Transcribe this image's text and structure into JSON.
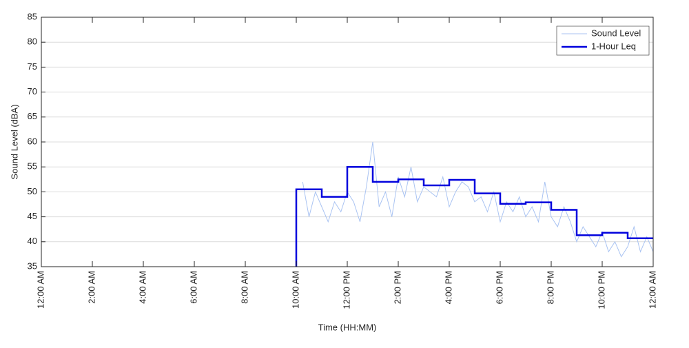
{
  "chart_data": {
    "type": "line",
    "xlabel": "Time (HH:MM)",
    "ylabel": "Sound Level (dBA)",
    "xlim": [
      0,
      24
    ],
    "ylim": [
      35,
      85
    ],
    "xticks": [
      {
        "value": 0,
        "label": "12:00 AM"
      },
      {
        "value": 2,
        "label": "2:00 AM"
      },
      {
        "value": 4,
        "label": "4:00 AM"
      },
      {
        "value": 6,
        "label": "6:00 AM"
      },
      {
        "value": 8,
        "label": "8:00 AM"
      },
      {
        "value": 10,
        "label": "10:00 AM"
      },
      {
        "value": 12,
        "label": "12:00 PM"
      },
      {
        "value": 14,
        "label": "2:00 PM"
      },
      {
        "value": 16,
        "label": "4:00 PM"
      },
      {
        "value": 18,
        "label": "6:00 PM"
      },
      {
        "value": 20,
        "label": "8:00 PM"
      },
      {
        "value": 22,
        "label": "10:00 PM"
      },
      {
        "value": 24,
        "label": "12:00 AM"
      }
    ],
    "yticks": [
      35,
      40,
      45,
      50,
      55,
      60,
      65,
      70,
      75,
      80,
      85
    ],
    "grid": true,
    "legend": "upper right",
    "series": [
      {
        "name": "Sound Level",
        "color": "#a9c3f2",
        "x": [
          10.25,
          10.5,
          10.75,
          11,
          11.25,
          11.5,
          11.75,
          12,
          12.25,
          12.5,
          12.75,
          13,
          13.25,
          13.5,
          13.75,
          14,
          14.25,
          14.5,
          14.75,
          15,
          15.25,
          15.5,
          15.75,
          16,
          16.25,
          16.5,
          16.75,
          17,
          17.25,
          17.5,
          17.75,
          18,
          18.25,
          18.5,
          18.75,
          19,
          19.25,
          19.5,
          19.75,
          20,
          20.25,
          20.5,
          20.75,
          21,
          21.25,
          21.5,
          21.75,
          22,
          22.25,
          22.5,
          22.75,
          23,
          23.25,
          23.5,
          23.75,
          24
        ],
        "values": [
          52,
          45,
          50,
          47,
          44,
          48,
          46,
          50,
          48,
          44,
          51,
          60,
          47,
          50,
          45,
          53,
          49,
          55,
          48,
          51,
          50,
          49,
          53,
          47,
          50,
          52,
          51,
          48,
          49,
          46,
          50,
          44,
          48,
          46,
          49,
          45,
          47,
          44,
          52,
          45,
          43,
          47,
          44,
          40,
          43,
          41,
          39,
          42,
          38,
          40,
          37,
          39,
          43,
          38,
          41,
          38
        ]
      },
      {
        "name": "1-Hour Leq",
        "color": "#0000dd",
        "step": true,
        "x": [
          10,
          11,
          12,
          13,
          14,
          15,
          16,
          17,
          18,
          19,
          20,
          21,
          22,
          23
        ],
        "values": [
          50.5,
          49,
          55,
          52,
          52.5,
          51.3,
          52.4,
          49.7,
          47.6,
          47.9,
          46.4,
          41.3,
          41.8,
          40.7
        ]
      }
    ]
  }
}
